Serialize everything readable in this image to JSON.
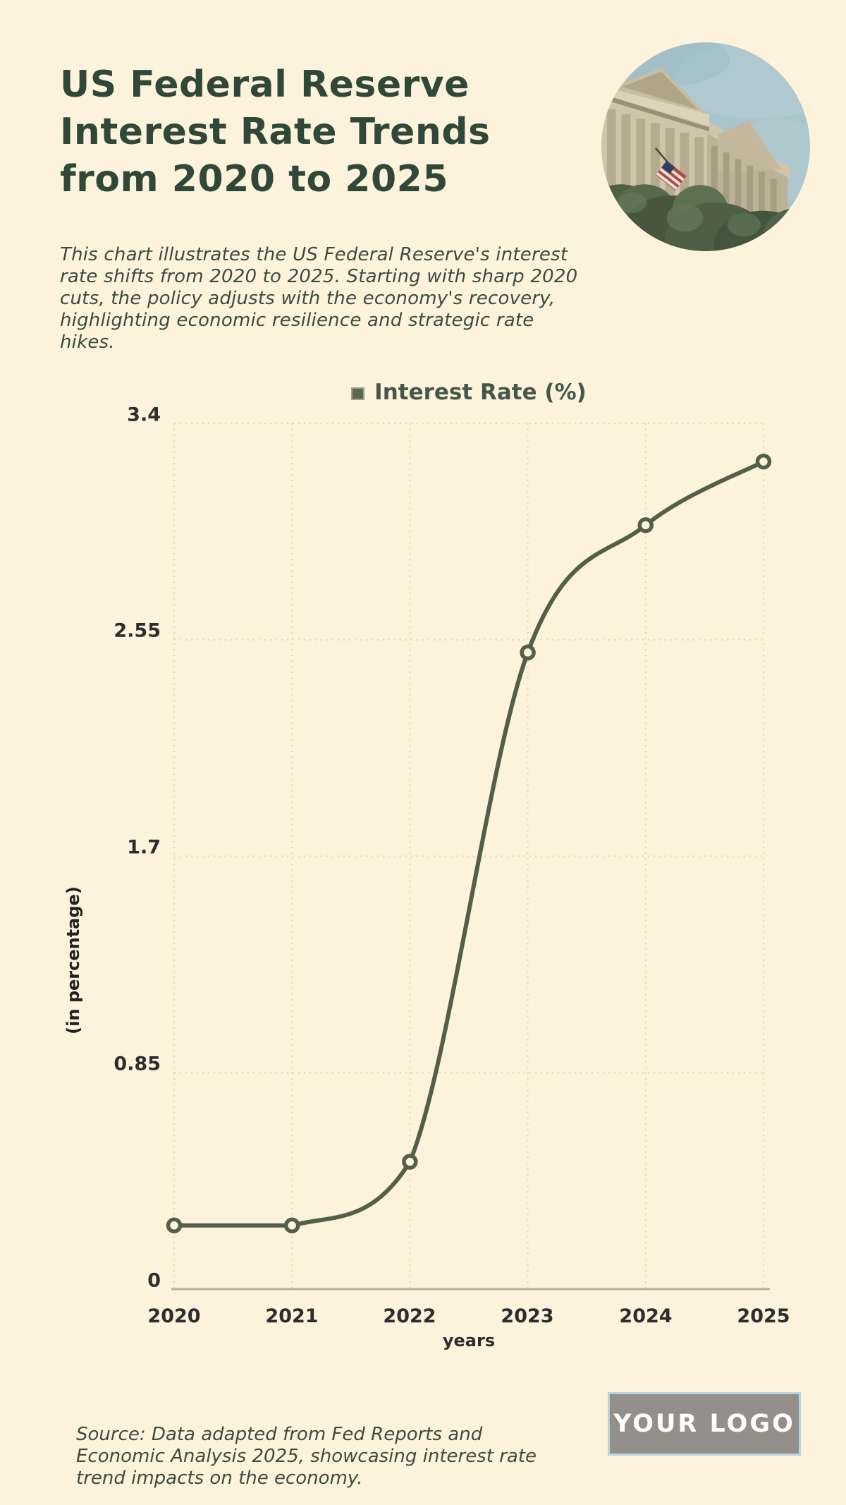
{
  "page": {
    "background_color": "#fdf3dc"
  },
  "header": {
    "title_lines": [
      "US Federal Reserve",
      "Interest Rate Trends",
      "from 2020 to 2025"
    ],
    "title_color": "#2f4838",
    "description": "This chart illustrates the US Federal Reserve's interest rate shifts from 2020 to 2025. Starting with sharp 2020 cuts, the policy adjusts with the economy's recovery, highlighting economic resilience and strategic rate hikes.",
    "photo": {
      "icon": "federal-building-photo"
    }
  },
  "chart": {
    "legend": {
      "label": "Interest Rate (%)",
      "marker_color": "#5c6952"
    },
    "y_axis": {
      "title": "(in percentage)",
      "ticks": [
        "3.4",
        "2.55",
        "1.7",
        "0.85",
        "0"
      ]
    },
    "x_axis": {
      "title": "years",
      "ticks": [
        "2020",
        "2021",
        "2022",
        "2023",
        "2024",
        "2025"
      ]
    },
    "colors": {
      "line": "#535f4a",
      "marker_fill": "#fdf3dc",
      "grid": "#e6d3b4",
      "baseline": "#b5ae9e",
      "tick_text": "#2d2d2d"
    }
  },
  "chart_data": {
    "type": "line",
    "title": "Interest Rate (%)",
    "x": [
      2020,
      2021,
      2022,
      2023,
      2024,
      2025
    ],
    "series": [
      {
        "name": "Interest Rate (%)",
        "values": [
          0.25,
          0.25,
          0.5,
          2.5,
          3.0,
          3.25
        ]
      }
    ],
    "xlabel": "years",
    "ylabel": "(in percentage)",
    "ylim": [
      0,
      3.4
    ],
    "yticks": [
      0,
      0.85,
      1.7,
      2.55,
      3.4
    ],
    "grid": true,
    "grid_style": "dotted",
    "legend_position": "top-center",
    "marker": "open-circle",
    "line_color": "#535f4a",
    "smooth": true
  },
  "footer": {
    "source_text": "Source: Data adapted from Fed Reports and Economic Analysis 2025, showcasing interest rate trend impacts on the economy.",
    "logo_text": "YOUR LOGO",
    "logo_bg": "#948f89",
    "logo_border": "#b9d2e0"
  }
}
